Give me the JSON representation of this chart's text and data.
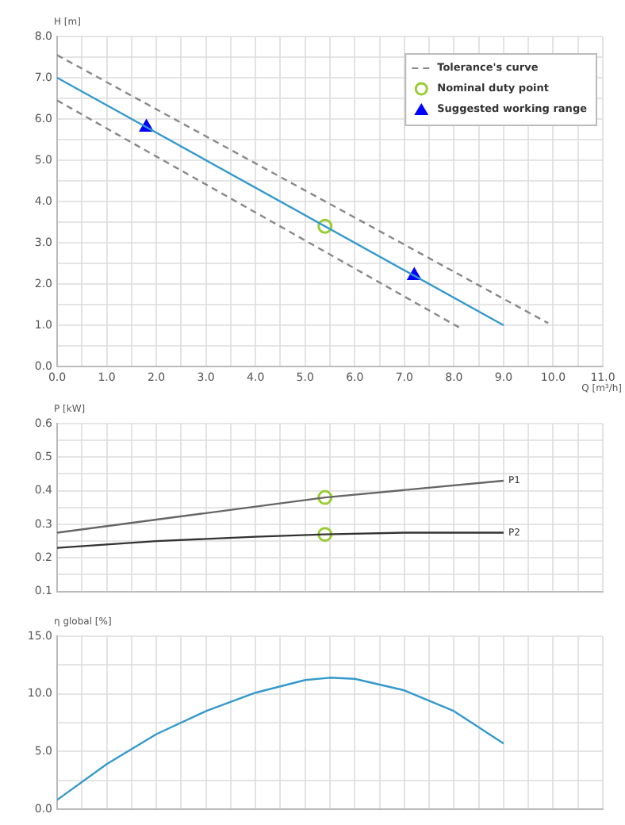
{
  "chart_data": [
    {
      "type": "line",
      "xlabel": "Q [m³/h]",
      "ylabel": "H [m]",
      "xlim": [
        0,
        11
      ],
      "ylim": [
        0,
        8
      ],
      "xticks": [
        {
          "value": 0,
          "label": "0.0"
        },
        {
          "value": 0.5,
          "label": null
        },
        {
          "value": 1,
          "label": "1.0"
        },
        {
          "value": 1.5,
          "label": null
        },
        {
          "value": 2,
          "label": "2.0"
        },
        {
          "value": 2.5,
          "label": null
        },
        {
          "value": 3,
          "label": "3.0"
        },
        {
          "value": 3.5,
          "label": null
        },
        {
          "value": 4,
          "label": "4.0"
        },
        {
          "value": 4.5,
          "label": null
        },
        {
          "value": 5,
          "label": "5.0"
        },
        {
          "value": 5.5,
          "label": null
        },
        {
          "value": 6,
          "label": "6.0"
        },
        {
          "value": 6.5,
          "label": null
        },
        {
          "value": 7,
          "label": "7.0"
        },
        {
          "value": 7.5,
          "label": null
        },
        {
          "value": 8,
          "label": "8.0"
        },
        {
          "value": 8.5,
          "label": null
        },
        {
          "value": 9,
          "label": "9.0"
        },
        {
          "value": 9.5,
          "label": null
        },
        {
          "value": 10,
          "label": "10.0"
        },
        {
          "value": 10.5,
          "label": null
        },
        {
          "value": 11,
          "label": "11.0"
        }
      ],
      "yticks": [
        {
          "value": 0,
          "label": "0.0"
        },
        {
          "value": 0.5,
          "label": null
        },
        {
          "value": 1,
          "label": "1.0"
        },
        {
          "value": 1.5,
          "label": null
        },
        {
          "value": 2,
          "label": "2.0"
        },
        {
          "value": 2.5,
          "label": null
        },
        {
          "value": 3,
          "label": "3.0"
        },
        {
          "value": 3.5,
          "label": null
        },
        {
          "value": 4,
          "label": "4.0"
        },
        {
          "value": 4.5,
          "label": null
        },
        {
          "value": 5,
          "label": "5.0"
        },
        {
          "value": 5.5,
          "label": null
        },
        {
          "value": 6,
          "label": "6.0"
        },
        {
          "value": 6.5,
          "label": null
        },
        {
          "value": 7,
          "label": "7.0"
        },
        {
          "value": 7.5,
          "label": null
        },
        {
          "value": 8,
          "label": "8.0"
        }
      ],
      "grid": true,
      "legend": "top right",
      "series": [
        {
          "name": "Tolerance's curve",
          "color": "#888888",
          "line_style": "dashed",
          "x": [
            0,
            9.9
          ],
          "values": [
            7.55,
            1.05
          ]
        },
        {
          "color": "#888888",
          "line_style": "dashed",
          "x": [
            0,
            8.1
          ],
          "values": [
            6.45,
            0.95
          ]
        },
        {
          "color": "#3399cc",
          "line_style": "solid",
          "x": [
            0,
            9
          ],
          "values": [
            7,
            1
          ]
        },
        {
          "name": "Nominal duty point",
          "type": "scatter",
          "color": "#99cc33",
          "marker": "circle",
          "x": [
            5.4
          ],
          "values": [
            3.4
          ]
        },
        {
          "name": "Suggested working range",
          "type": "scatter",
          "color": "#0000ff",
          "marker": "triangle",
          "x": [
            1.8,
            7.2
          ],
          "values": [
            5.8,
            2.2
          ]
        }
      ]
    },
    {
      "type": "line",
      "ylabel": "P [kW]",
      "xlim": [
        0,
        11
      ],
      "ylim": [
        0.1,
        0.6
      ],
      "tick_labels": "y",
      "xticks": [
        0,
        0.5,
        1,
        1.5,
        2,
        2.5,
        3,
        3.5,
        4,
        4.5,
        5,
        5.5,
        6,
        6.5,
        7,
        7.5,
        8,
        8.5,
        9,
        9.5,
        10,
        10.5,
        11
      ],
      "yticks": [
        0.1,
        {
          "value": 0.15,
          "label": null
        },
        0.2,
        {
          "value": 0.25,
          "label": null
        },
        0.3,
        {
          "value": 0.35,
          "label": null
        },
        0.4,
        {
          "value": 0.45,
          "label": null
        },
        0.5,
        {
          "value": 0.55,
          "label": null
        },
        0.6
      ],
      "grid": true,
      "legend": false,
      "series": [
        {
          "name": "P1",
          "color": "#666666",
          "line_style": "solid",
          "x": [
            0,
            5.4,
            9
          ],
          "values": [
            0.275,
            0.38,
            0.43
          ]
        },
        {
          "name": "P2",
          "color": "#333333",
          "line_style": "solid",
          "x": [
            0,
            2,
            4,
            5.4,
            7,
            9
          ],
          "values": [
            0.23,
            0.25,
            0.263,
            0.27,
            0.275,
            0.275
          ]
        },
        {
          "type": "scatter",
          "color": "#99cc33",
          "marker": "circle",
          "x": [
            5.4,
            5.4
          ],
          "values": [
            0.38,
            0.27
          ]
        }
      ]
    },
    {
      "type": "line",
      "ylabel": "η global [%]",
      "xlim": [
        0,
        11
      ],
      "ylim": [
        0,
        15
      ],
      "tick_labels": "y",
      "xticks": [
        0,
        0.5,
        1,
        1.5,
        2,
        2.5,
        3,
        3.5,
        4,
        4.5,
        5,
        5.5,
        6,
        6.5,
        7,
        7.5,
        8,
        8.5,
        9,
        9.5,
        10,
        10.5,
        11
      ],
      "yticks": [
        {
          "value": 0,
          "label": "0.0"
        },
        {
          "value": 2.5,
          "label": null
        },
        {
          "value": 5,
          "label": "5.0"
        },
        {
          "value": 7.5,
          "label": null
        },
        {
          "value": 10,
          "label": "10.0"
        },
        {
          "value": 12.5,
          "label": null
        },
        {
          "value": 15,
          "label": "15.0"
        }
      ],
      "grid": true,
      "legend": false,
      "series": [
        {
          "color": "#3399cc",
          "line_style": "solid",
          "x": [
            0,
            1,
            2,
            3,
            4,
            5,
            5.5,
            6,
            7,
            8,
            9
          ],
          "values": [
            0.8,
            3.9,
            6.5,
            8.5,
            10.1,
            11.2,
            11.4,
            11.3,
            10.3,
            8.5,
            5.7
          ]
        }
      ]
    }
  ]
}
